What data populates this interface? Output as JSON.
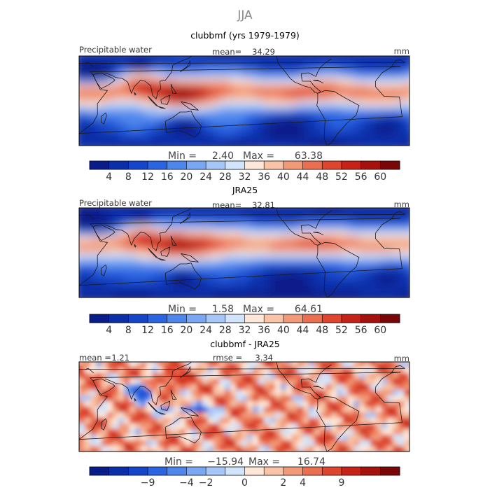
{
  "figure": {
    "season_title": "JJA"
  },
  "colors": {
    "absolute_scale": [
      "#081d8a",
      "#0b2fa8",
      "#1545c8",
      "#2a64e0",
      "#4e86ec",
      "#7aa7f2",
      "#a6c6f7",
      "#d2e4fb",
      "#fde7d8",
      "#f8c3a6",
      "#f29a78",
      "#ea6e50",
      "#dd452e",
      "#c72218",
      "#a5110d",
      "#7a0708"
    ],
    "difference_scale": [
      "#081d8a",
      "#0b2fa8",
      "#1545c8",
      "#2a64e0",
      "#4e86ec",
      "#7aa7f2",
      "#a6c6f7",
      "#d2e4fb",
      "#fde7d8",
      "#f8c3a6",
      "#f29a78",
      "#ea6e50",
      "#dd452e",
      "#c72218",
      "#a5110d",
      "#7a0708"
    ]
  },
  "chart_data": [
    {
      "type": "heatmap",
      "title": "clubbmf (yrs 1979-1979)",
      "variable_label": "Precipitable water",
      "mean_label": "mean=",
      "mean_value": "34.29",
      "units": "mm",
      "min_label": "Min =",
      "min_value": "2.40",
      "max_label": "Max =",
      "max_value": "63.38",
      "min": 2.4,
      "max": 63.38,
      "mean": 34.29,
      "colorbar_ticks": [
        "4",
        "8",
        "12",
        "16",
        "20",
        "24",
        "28",
        "32",
        "36",
        "40",
        "44",
        "48",
        "52",
        "56",
        "60"
      ]
    },
    {
      "type": "heatmap",
      "title": "JRA25",
      "variable_label": "Precipitable water",
      "mean_label": "mean=",
      "mean_value": "32.81",
      "units": "mm",
      "min_label": "Min =",
      "min_value": "1.58",
      "max_label": "Max =",
      "max_value": "64.61",
      "min": 1.58,
      "max": 64.61,
      "mean": 32.81,
      "colorbar_ticks": [
        "4",
        "8",
        "12",
        "16",
        "20",
        "24",
        "28",
        "32",
        "36",
        "40",
        "44",
        "48",
        "52",
        "56",
        "60"
      ]
    },
    {
      "type": "heatmap",
      "title": "clubbmf - JRA25",
      "mean_label": "mean =",
      "mean_value": "1.21",
      "rmse_label": "rmse =",
      "rmse_value": "3.34",
      "units": "mm",
      "min_label": "Min =",
      "min_value": "−15.94",
      "max_label": "Max =",
      "max_value": "16.74",
      "min": -15.94,
      "max": 16.74,
      "mean": 1.21,
      "rmse": 3.34,
      "colorbar_ticks": [
        "−9",
        "−4",
        "−2",
        "0",
        "2",
        "4",
        "9"
      ]
    }
  ]
}
